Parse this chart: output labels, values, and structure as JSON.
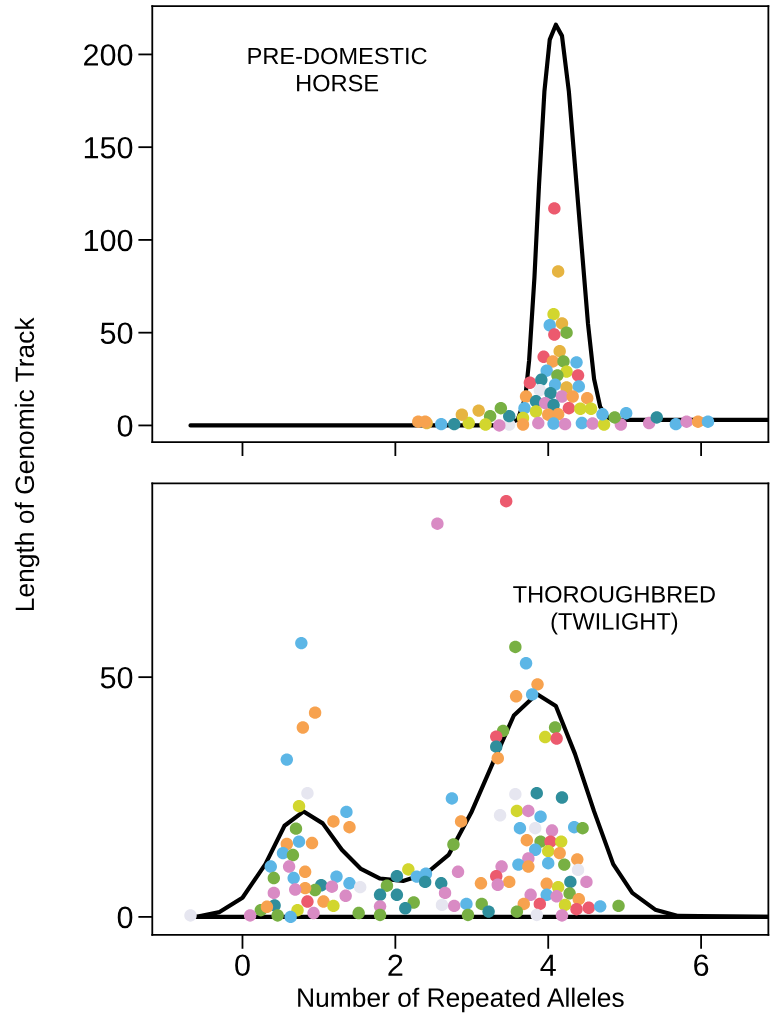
{
  "chart_data": [
    {
      "type": "scatter",
      "ylabel": "Length of Genomic Track",
      "annotations": [
        "PRE-DOMESTIC\nHORSE"
      ],
      "xlim": [
        -1.18,
        6.88
      ],
      "ylim": [
        -9,
        226
      ],
      "xticks": [
        0,
        2,
        4,
        6
      ],
      "yticks": [
        0,
        50,
        100,
        150,
        200
      ],
      "tick_labels": "y",
      "grid": false,
      "legend": false,
      "series": [
        {
          "type": "line",
          "color": "#000000",
          "marker": "none",
          "line_style": "solid",
          "x": [
            -0.68,
            3.4,
            3.6,
            3.7,
            3.75,
            3.82,
            3.88,
            3.95,
            4.02,
            4.1,
            4.18,
            4.27,
            4.35,
            4.45,
            4.52,
            4.6,
            4.68,
            4.78,
            4.9,
            6.88
          ],
          "values": [
            0,
            0,
            3,
            15,
            35,
            80,
            130,
            180,
            208,
            216,
            210,
            180,
            140,
            90,
            55,
            25,
            10,
            4,
            3,
            3
          ]
        },
        {
          "marker": "circle",
          "x": [
            4.08,
            4.13,
            4.07,
            4.02,
            4.18,
            4.24,
            4.08,
            4.15,
            3.94,
            4.06,
            4.2,
            4.37,
            3.98,
            4.24,
            4.39,
            4.12,
            3.76,
            3.91,
            4.09,
            4.24,
            4.4,
            3.71,
            3.89,
            4.03,
            4.18,
            4.32,
            4.51,
            3.84,
            3.96,
            4.07,
            4.27,
            4.42,
            4.56,
            3.69,
            3.84,
            4.0,
            4.13,
            3.67,
            3.87,
            4.07,
            4.22,
            4.44,
            4.58,
            4.73,
            4.95,
            4.71,
            4.87,
            5.02,
            5.32,
            5.42,
            5.67,
            5.81,
            5.96,
            6.09,
            3.67,
            3.49,
            3.36,
            3.49,
            3.38,
            3.24,
            3.18,
            3.09,
            2.96,
            2.87,
            2.77,
            2.6,
            2.41,
            2.3,
            2.39
          ],
          "values": [
            117,
            83,
            60,
            54,
            55,
            50,
            49,
            40,
            37,
            34.5,
            34.5,
            34,
            29.5,
            29,
            27,
            27,
            23,
            24.6,
            22,
            20.5,
            21,
            15.6,
            19,
            17.4,
            15.6,
            15.6,
            14.7,
            13,
            12,
            11,
            9.3,
            9,
            9,
            9.3,
            7.5,
            5.8,
            6,
            4,
            1.3,
            1,
            0.7,
            1.3,
            1,
            0.5,
            0.5,
            6,
            4.3,
            6.6,
            1.3,
            4.3,
            0.7,
            2,
            2,
            2,
            0.5,
            0.5,
            0,
            5,
            9.3,
            5,
            0.5,
            8,
            1.3,
            5.8,
            0.7,
            0.7,
            1.3,
            2,
            2
          ],
          "colors": [
            "#ec5a6e",
            "#e6b441",
            "#d2d62e",
            "#5cb6e6",
            "#e6b441",
            "#78b043",
            "#ec5a6e",
            "#e6b441",
            "#ec5a6e",
            "#f7a24f",
            "#78b043",
            "#5cb6e6",
            "#5cb6e6",
            "#d2d62e",
            "#ec5a6e",
            "#78b043",
            "#ec5a6e",
            "#2f8e9c",
            "#5cb6e6",
            "#e6b441",
            "#5cb6e6",
            "#f7a24f",
            "#e6e6f0",
            "#2f8e9c",
            "#d98bc4",
            "#f7a24f",
            "#f7a24f",
            "#2f8e9c",
            "#d98bc4",
            "#2f8e9c",
            "#ec5a6e",
            "#d2d62e",
            "#d2d62e",
            "#5cb6e6",
            "#d2d62e",
            "#f7a24f",
            "#f7a24f",
            "#d2d62e",
            "#d98bc4",
            "#5cb6e6",
            "#d98bc4",
            "#5cb6e6",
            "#d98bc4",
            "#d2d62e",
            "#d98bc4",
            "#5cb6e6",
            "#78b043",
            "#5cb6e6",
            "#d98bc4",
            "#2f8e9c",
            "#5cb6e6",
            "#d98bc4",
            "#f7a24f",
            "#5cb6e6",
            "#f7a24f",
            "#e6e6f0",
            "#d98bc4",
            "#2f8e9c",
            "#78b043",
            "#78b043",
            "#d2d62e",
            "#e6b441",
            "#d2d62e",
            "#e6b441",
            "#2f8e9c",
            "#5cb6e6",
            "#e6b441",
            "#f7a24f",
            "#f7a24f"
          ]
        }
      ]
    },
    {
      "type": "scatter",
      "xlabel": "Number of Repeated Alleles",
      "annotations": [
        "THOROUGHBRED\n(TWILIGHT)"
      ],
      "xlim": [
        -1.18,
        6.88
      ],
      "ylim": [
        -3.75,
        90.4
      ],
      "xticks": [
        0,
        2,
        4,
        6
      ],
      "yticks": [
        0,
        50
      ],
      "grid": false,
      "legend": false,
      "series": [
        {
          "type": "line",
          "color": "#000000",
          "marker": "none",
          "line_style": "solid",
          "x": [
            -0.6,
            6.88
          ],
          "values": [
            0,
            0
          ]
        },
        {
          "type": "line",
          "color": "#000000",
          "marker": "none",
          "line_style": "solid",
          "x": [
            -0.6,
            -0.3,
            0,
            0.3,
            0.55,
            0.8,
            1.05,
            1.3,
            1.55,
            1.8,
            2.1,
            2.4,
            2.7,
            3.0,
            3.3,
            3.55,
            3.85,
            4.1,
            4.35,
            4.6,
            4.85,
            5.1,
            5.4,
            5.7,
            6.88
          ],
          "values": [
            0,
            1,
            4,
            11,
            19,
            22,
            19.5,
            14,
            10,
            8,
            7.5,
            9,
            13,
            22,
            33,
            42,
            46.5,
            44,
            34,
            22,
            11,
            5,
            1.5,
            0.2,
            0
          ]
        },
        {
          "marker": "circle",
          "x": [
            2.55,
            0.77,
            0.95,
            0.79,
            0.58,
            0.85,
            0.74,
            1.36,
            1.19,
            1.4,
            0.7,
            0.58,
            0.74,
            0.91,
            0.53,
            0.66,
            2.74,
            2.86,
            2.76,
            0.37,
            0.61,
            0.82,
            0.41,
            0.67,
            1.23,
            1.4,
            1.54,
            1.03,
            1.17,
            0.95,
            0.82,
            0.69,
            0.41,
            1.35,
            2.02,
            2.17,
            1.89,
            1.8,
            2.02,
            2.28,
            2.4,
            2.39,
            2.6,
            2.82,
            2.65,
            2.24,
            2.13,
            1.8,
            0.85,
            1.06,
            1.19,
            0.42,
            0.24,
            0.32,
            0.72,
            0.93,
            0.63,
            0.46,
            0.1,
            -0.68,
            1.52,
            1.8,
            2.61,
            2.77,
            2.93,
            2.95,
            3.45,
            3.57,
            3.71,
            3.86,
            3.58,
            3.79,
            3.41,
            3.32,
            3.32,
            3.34,
            4.09,
            3.96,
            4.11,
            3.57,
            3.85,
            4.18,
            3.37,
            3.59,
            3.74,
            3.9,
            3.63,
            3.83,
            4.05,
            4.34,
            4.45,
            3.72,
            3.9,
            4.03,
            4.17,
            3.83,
            4.0,
            4.15,
            3.74,
            4.38,
            3.61,
            3.74,
            4.0,
            4.21,
            4.39,
            3.39,
            3.32,
            3.49,
            3.34,
            3.12,
            3.98,
            4.13,
            4.29,
            4.5,
            4.28,
            3.98,
            4.11,
            3.77,
            4.4,
            3.68,
            3.89,
            4.22,
            4.37,
            4.53,
            4.68,
            4.92,
            3.59,
            3.85,
            4.18,
            3.13,
            3.22
          ],
          "values": [
            82,
            57.1,
            42.6,
            39.5,
            32.8,
            25.8,
            23.1,
            21.9,
            19.9,
            18.7,
            18.4,
            15.2,
            15.7,
            15.4,
            13.3,
            12.9,
            24.7,
            19.9,
            15.1,
            10.5,
            10.5,
            9.4,
            8.1,
            8.1,
            8.4,
            7,
            6.2,
            6.6,
            6.3,
            5.6,
            6,
            5.7,
            5,
            4.4,
            8.5,
            9.9,
            6.5,
            4.6,
            4.6,
            8.4,
            9,
            7.3,
            7,
            9.4,
            5,
            3,
            1.8,
            2.2,
            3.2,
            3.2,
            2.3,
            2.4,
            1.4,
            2.1,
            1.4,
            0.8,
            0,
            0.3,
            0.3,
            0.3,
            0.8,
            0.4,
            2.5,
            2.3,
            2.7,
            0.4,
            86.7,
            56.3,
            52.9,
            48.5,
            46,
            46.4,
            38.8,
            37.6,
            35.5,
            33.1,
            39.5,
            37.5,
            37.2,
            25.6,
            25.8,
            24.9,
            21.2,
            22.1,
            22.1,
            20.9,
            18.5,
            18.5,
            18,
            18.7,
            18.5,
            16,
            15.7,
            15.7,
            15.7,
            14,
            13.7,
            13.3,
            12.2,
            12,
            10.9,
            10.5,
            11.2,
            10.9,
            9.8,
            10.5,
            8.5,
            7.3,
            6.7,
            7,
            6.9,
            6.2,
            7.3,
            7.3,
            4.9,
            4.6,
            4.3,
            4.6,
            3.7,
            2.7,
            2.7,
            2.5,
            1.6,
            1.9,
            2.2,
            2.3,
            1.1,
            0.4,
            0.3,
            2.7,
            1.1
          ],
          "colors": [
            "#d98bc4",
            "#5cb6e6",
            "#f7a24f",
            "#f7a24f",
            "#5cb6e6",
            "#e6e6f0",
            "#d2d62e",
            "#5cb6e6",
            "#f7a24f",
            "#f7a24f",
            "#78b043",
            "#f7a24f",
            "#5cb6e6",
            "#f7a24f",
            "#5cb6e6",
            "#78b043",
            "#5cb6e6",
            "#f7a24f",
            "#78b043",
            "#5cb6e6",
            "#d98bc4",
            "#f7a24f",
            "#78b043",
            "#5cb6e6",
            "#5cb6e6",
            "#5cb6e6",
            "#e6e6f0",
            "#2f8e9c",
            "#d98bc4",
            "#78b043",
            "#f7a24f",
            "#d98bc4",
            "#d98bc4",
            "#d98bc4",
            "#2f8e9c",
            "#d2d62e",
            "#78b043",
            "#2f8e9c",
            "#2f8e9c",
            "#5cb6e6",
            "#5cb6e6",
            "#2f8e9c",
            "#2f8e9c",
            "#d98bc4",
            "#d98bc4",
            "#78b043",
            "#2f8e9c",
            "#d98bc4",
            "#ec5a6e",
            "#f7a24f",
            "#d2d62e",
            "#2f8e9c",
            "#78b043",
            "#f7a24f",
            "#d2d62e",
            "#d98bc4",
            "#5cb6e6",
            "#78b043",
            "#d98bc4",
            "#e6e6f0",
            "#78b043",
            "#78b043",
            "#e6e6f0",
            "#d98bc4",
            "#5cb6e6",
            "#78b043",
            "#ec5a6e",
            "#78b043",
            "#5cb6e6",
            "#f7a24f",
            "#f7a24f",
            "#5cb6e6",
            "#78b043",
            "#ec5a6e",
            "#2f8e9c",
            "#f7a24f",
            "#78b043",
            "#d2d62e",
            "#ec5a6e",
            "#e6e6f0",
            "#2f8e9c",
            "#2f8e9c",
            "#e6e6f0",
            "#d2d62e",
            "#d98bc4",
            "#5cb6e6",
            "#5cb6e6",
            "#e6e6f0",
            "#d98bc4",
            "#5cb6e6",
            "#78b043",
            "#f7a24f",
            "#78b043",
            "#ec5a6e",
            "#d2d62e",
            "#5cb6e6",
            "#d2d62e",
            "#f7a24f",
            "#d98bc4",
            "#f7a24f",
            "#5cb6e6",
            "#f7a24f",
            "#5cb6e6",
            "#78b043",
            "#e6e6f0",
            "#d98bc4",
            "#ec5a6e",
            "#f7a24f",
            "#d98bc4",
            "#f7a24f",
            "#f7a24f",
            "#d2d62e",
            "#2f8e9c",
            "#d98bc4",
            "#78b043",
            "#5cb6e6",
            "#d98bc4",
            "#d98bc4",
            "#f7a24f",
            "#f7a24f",
            "#ec5a6e",
            "#d2d62e",
            "#ec5a6e",
            "#ec5a6e",
            "#5cb6e6",
            "#78b043",
            "#78b043",
            "#e6e6f0",
            "#d98bc4",
            "#78b043",
            "#2f8e9c"
          ]
        }
      ]
    }
  ]
}
